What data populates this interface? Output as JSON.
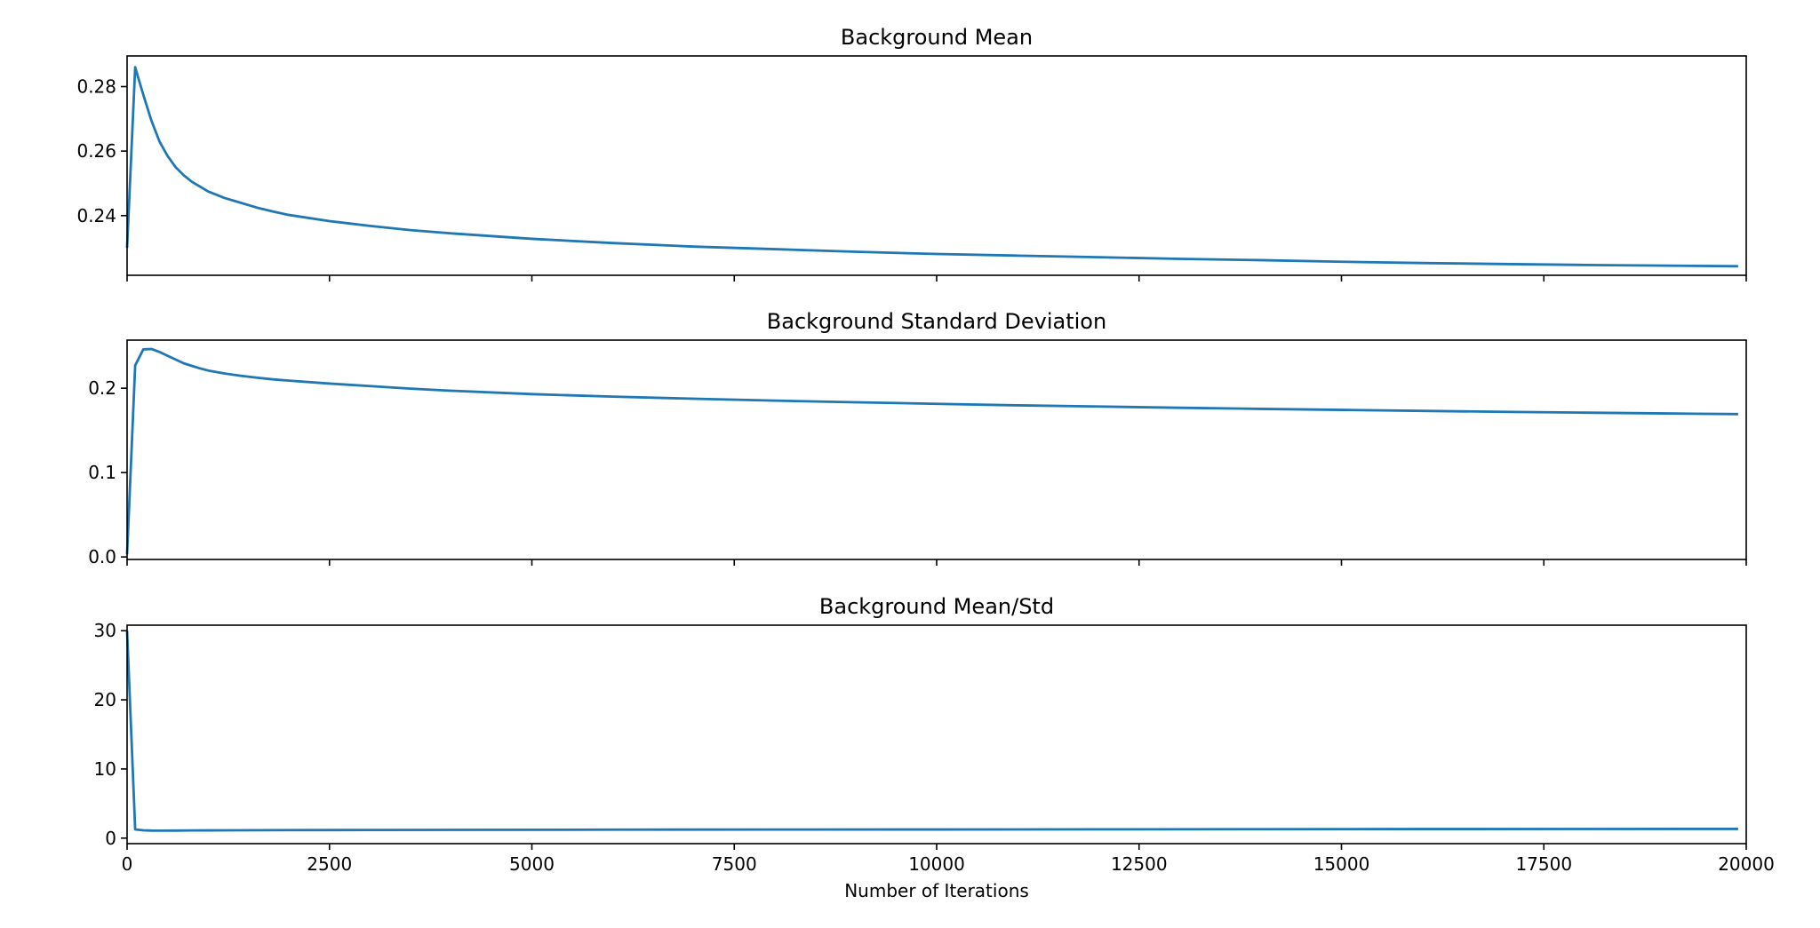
{
  "colors": {
    "series": "#1f77b4",
    "axes": "#000000",
    "background": "#ffffff"
  },
  "chart_data": [
    {
      "type": "line",
      "title": "Background Mean",
      "xlabel": "",
      "ylabel": "",
      "xlim": [
        0,
        20000
      ],
      "ylim": [
        0.2215,
        0.2895
      ],
      "grid": false,
      "x_ticks": [
        0,
        2500,
        5000,
        7500,
        10000,
        12500,
        15000,
        17500,
        20000
      ],
      "x_ticklabels_visible": false,
      "y_ticks": [
        0.24,
        0.26,
        0.28
      ],
      "y_ticklabels": [
        "0.24",
        "0.26",
        "0.28"
      ],
      "series": [
        {
          "x": [
            0,
            100,
            200,
            300,
            400,
            500,
            600,
            700,
            800,
            900,
            1000,
            1200,
            1400,
            1600,
            1800,
            2000,
            2500,
            3000,
            3500,
            4000,
            5000,
            6000,
            7000,
            8000,
            9000,
            10000,
            11000,
            12000,
            13000,
            14000,
            15000,
            16000,
            17000,
            18000,
            19000,
            19900
          ],
          "y": [
            0.23,
            0.286,
            0.2775,
            0.2695,
            0.263,
            0.2585,
            0.255,
            0.2525,
            0.2505,
            0.249,
            0.2475,
            0.2455,
            0.244,
            0.2425,
            0.2413,
            0.2402,
            0.2383,
            0.2368,
            0.2355,
            0.2345,
            0.2328,
            0.2315,
            0.2304,
            0.2296,
            0.2288,
            0.2281,
            0.2276,
            0.2271,
            0.2266,
            0.2262,
            0.2257,
            0.2253,
            0.225,
            0.2247,
            0.2245,
            0.2243
          ]
        }
      ]
    },
    {
      "type": "line",
      "title": "Background Standard Deviation",
      "xlabel": "",
      "ylabel": "",
      "xlim": [
        0,
        20000
      ],
      "ylim": [
        -0.003,
        0.257
      ],
      "grid": false,
      "x_ticks": [
        0,
        2500,
        5000,
        7500,
        10000,
        12500,
        15000,
        17500,
        20000
      ],
      "x_ticklabels_visible": false,
      "y_ticks": [
        0.0,
        0.1,
        0.2
      ],
      "y_ticklabels": [
        "0.0",
        "0.1",
        "0.2"
      ],
      "series": [
        {
          "x": [
            0,
            100,
            200,
            300,
            400,
            500,
            600,
            700,
            800,
            900,
            1000,
            1200,
            1400,
            1600,
            1800,
            2000,
            2500,
            3000,
            3500,
            4000,
            5000,
            6000,
            7000,
            8000,
            9000,
            10000,
            11000,
            12000,
            13000,
            14000,
            15000,
            16000,
            17000,
            18000,
            19000,
            19900
          ],
          "y": [
            0.003,
            0.227,
            0.246,
            0.2465,
            0.243,
            0.2385,
            0.234,
            0.2295,
            0.2265,
            0.2235,
            0.221,
            0.2175,
            0.2148,
            0.2125,
            0.2105,
            0.209,
            0.2055,
            0.2025,
            0.1995,
            0.197,
            0.193,
            0.19,
            0.1875,
            0.1853,
            0.1833,
            0.1815,
            0.1797,
            0.1783,
            0.1768,
            0.1755,
            0.1743,
            0.1731,
            0.172,
            0.171,
            0.1701,
            0.1693
          ]
        }
      ]
    },
    {
      "type": "line",
      "title": "Background Mean/Std",
      "xlabel": "Number of Iterations",
      "ylabel": "",
      "xlim": [
        0,
        20000
      ],
      "ylim": [
        -0.8,
        30.8
      ],
      "grid": false,
      "x_ticks": [
        0,
        2500,
        5000,
        7500,
        10000,
        12500,
        15000,
        17500,
        20000
      ],
      "x_ticklabels_visible": true,
      "x_ticklabels": [
        "0",
        "2500",
        "5000",
        "7500",
        "10000",
        "12500",
        "15000",
        "17500",
        "20000"
      ],
      "y_ticks": [
        0,
        10,
        20,
        30
      ],
      "y_ticklabels": [
        "0",
        "10",
        "20",
        "30"
      ],
      "series": [
        {
          "x": [
            0,
            100,
            200,
            300,
            400,
            600,
            800,
            1000,
            2000,
            3000,
            4000,
            6000,
            8000,
            10000,
            12000,
            14000,
            16000,
            18000,
            19900
          ],
          "y": [
            30.0,
            1.26,
            1.13,
            1.09,
            1.08,
            1.09,
            1.11,
            1.12,
            1.16,
            1.17,
            1.19,
            1.22,
            1.24,
            1.25,
            1.27,
            1.29,
            1.31,
            1.32,
            1.33
          ]
        }
      ]
    }
  ]
}
